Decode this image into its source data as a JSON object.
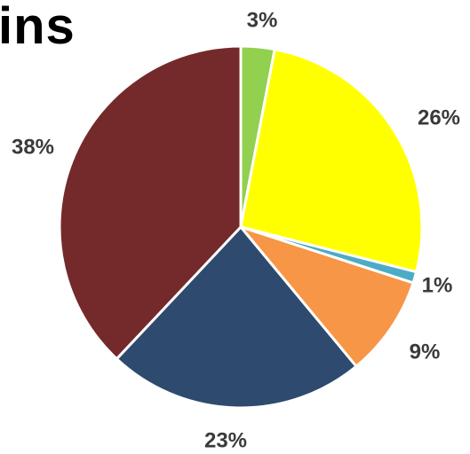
{
  "chart_data": {
    "type": "pie",
    "title": "ins",
    "slices": [
      {
        "label": "3%",
        "value": 3,
        "color": "#92D050"
      },
      {
        "label": "26%",
        "value": 26,
        "color": "#FFFF00"
      },
      {
        "label": "1%",
        "value": 1,
        "color": "#4BACC6"
      },
      {
        "label": "9%",
        "value": 9,
        "color": "#F79646"
      },
      {
        "label": "23%",
        "value": 23,
        "color": "#2E4A6E"
      },
      {
        "label": "38%",
        "value": 38,
        "color": "#742A2A"
      }
    ],
    "colors": {
      "separator": "#ffffff",
      "label": "#3a3a3a",
      "title": "#000000"
    }
  }
}
